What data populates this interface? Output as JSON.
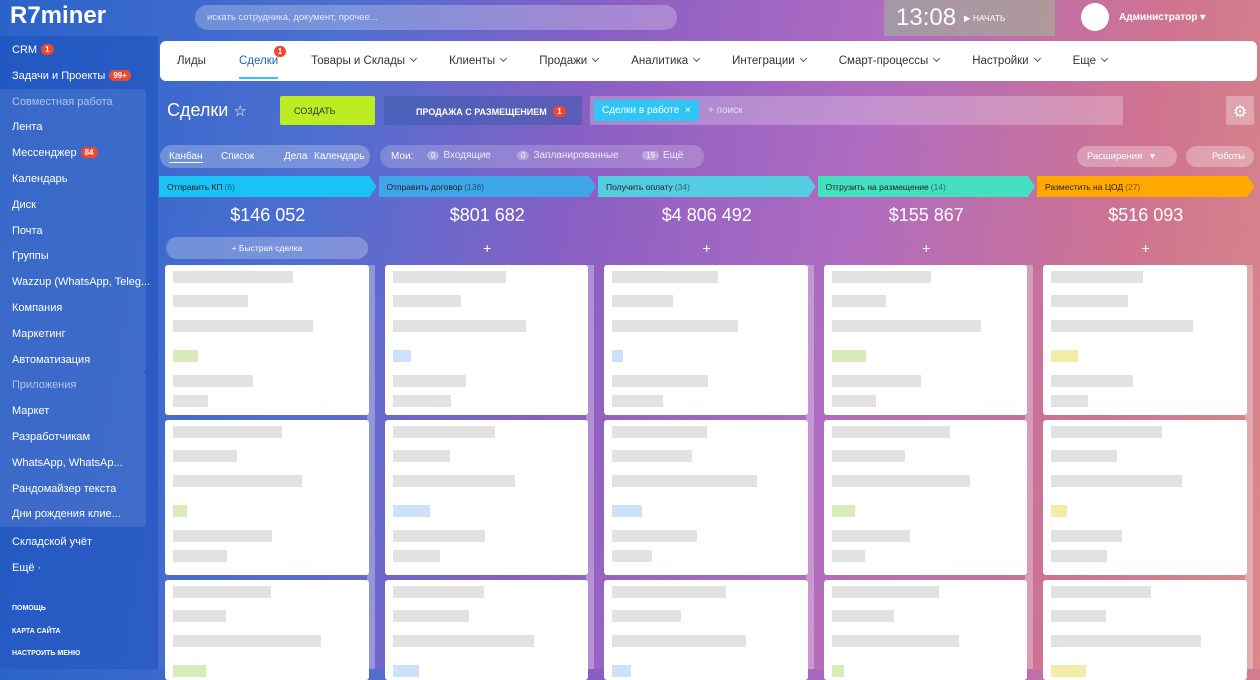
{
  "header": {
    "logo": "R7miner",
    "search_placeholder": "искать сотрудника, документ, прочее...",
    "time": "13:08",
    "start": "НАЧАТЬ",
    "user": "Администратор"
  },
  "sidebar": {
    "top": [
      {
        "label": "CRM",
        "badge": "1"
      },
      {
        "label": "Задачи и Проекты",
        "badge": "99+"
      }
    ],
    "groups": [
      {
        "title": "Совместная работа",
        "items": [
          {
            "label": "Лента"
          },
          {
            "label": "Мессенджер",
            "badge": "84"
          },
          {
            "label": "Календарь"
          },
          {
            "label": "Диск"
          },
          {
            "label": "Почта"
          },
          {
            "label": "Группы"
          },
          {
            "label": "Wazzup (WhatsApp, Teleg..."
          },
          {
            "label": "Компания"
          },
          {
            "label": "Маркетинг"
          },
          {
            "label": "Автоматизация"
          }
        ]
      },
      {
        "title": "Приложения",
        "items": [
          {
            "label": "Маркет"
          },
          {
            "label": "Разработчикам"
          },
          {
            "label": "WhatsApp, WhatsAp..."
          },
          {
            "label": "Рандомайзер текста"
          },
          {
            "label": "Дни рождения клие..."
          }
        ]
      }
    ],
    "bottom": [
      {
        "label": "Складской учёт"
      },
      {
        "label": "Ещё ·"
      }
    ],
    "footer": [
      "ПОМОЩЬ",
      "КАРТА САЙТА",
      "НАСТРОИТЬ МЕНЮ"
    ]
  },
  "tabs": [
    {
      "label": "Лиды"
    },
    {
      "label": "Сделки",
      "badge": "1",
      "active": true
    },
    {
      "label": "Товары и Склады",
      "dropdown": true
    },
    {
      "label": "Клиенты",
      "dropdown": true
    },
    {
      "label": "Продажи",
      "dropdown": true
    },
    {
      "label": "Аналитика",
      "dropdown": true
    },
    {
      "label": "Интеграции",
      "dropdown": true
    },
    {
      "label": "Смарт-процессы",
      "dropdown": true
    },
    {
      "label": "Настройки",
      "dropdown": true
    },
    {
      "label": "Еще",
      "dropdown": true
    }
  ],
  "toolbar": {
    "title": "Сделки",
    "create": "СОЗДАТЬ",
    "pipeline": "ПРОДАЖА С РАЗМЕЩЕНИЕМ",
    "pipeline_badge": "1",
    "filter_tag": "Сделки в работе",
    "search_placeholder": "+ поиск"
  },
  "views": {
    "tabs": [
      "Канбан",
      "Список",
      "Дела",
      "Календарь"
    ],
    "mine_label": "Мои:",
    "counters": [
      {
        "count": "0",
        "label": "Входящие"
      },
      {
        "count": "0",
        "label": "Запланированные"
      },
      {
        "count": "19",
        "label": "Ещё"
      }
    ],
    "extensions": "Расширения",
    "robots": "Роботы"
  },
  "columns": [
    {
      "name": "Отправить КП",
      "count": "(6)",
      "sum": "$146 052",
      "color": "#19c3f5",
      "quick": "Быстрая сделка"
    },
    {
      "name": "Отправить договор",
      "count": "(136)",
      "sum": "$801 682",
      "color": "#3fa6ea"
    },
    {
      "name": "Получить оплату",
      "count": "(34)",
      "sum": "$4 806 492",
      "color": "#55cde0"
    },
    {
      "name": "Отгрузить на размещение",
      "count": "(14)",
      "sum": "$155 867",
      "color": "#45e0c0"
    },
    {
      "name": "Разместить на ЦОД",
      "count": "(27)",
      "sum": "$516 093",
      "color": "#ffa800"
    }
  ]
}
